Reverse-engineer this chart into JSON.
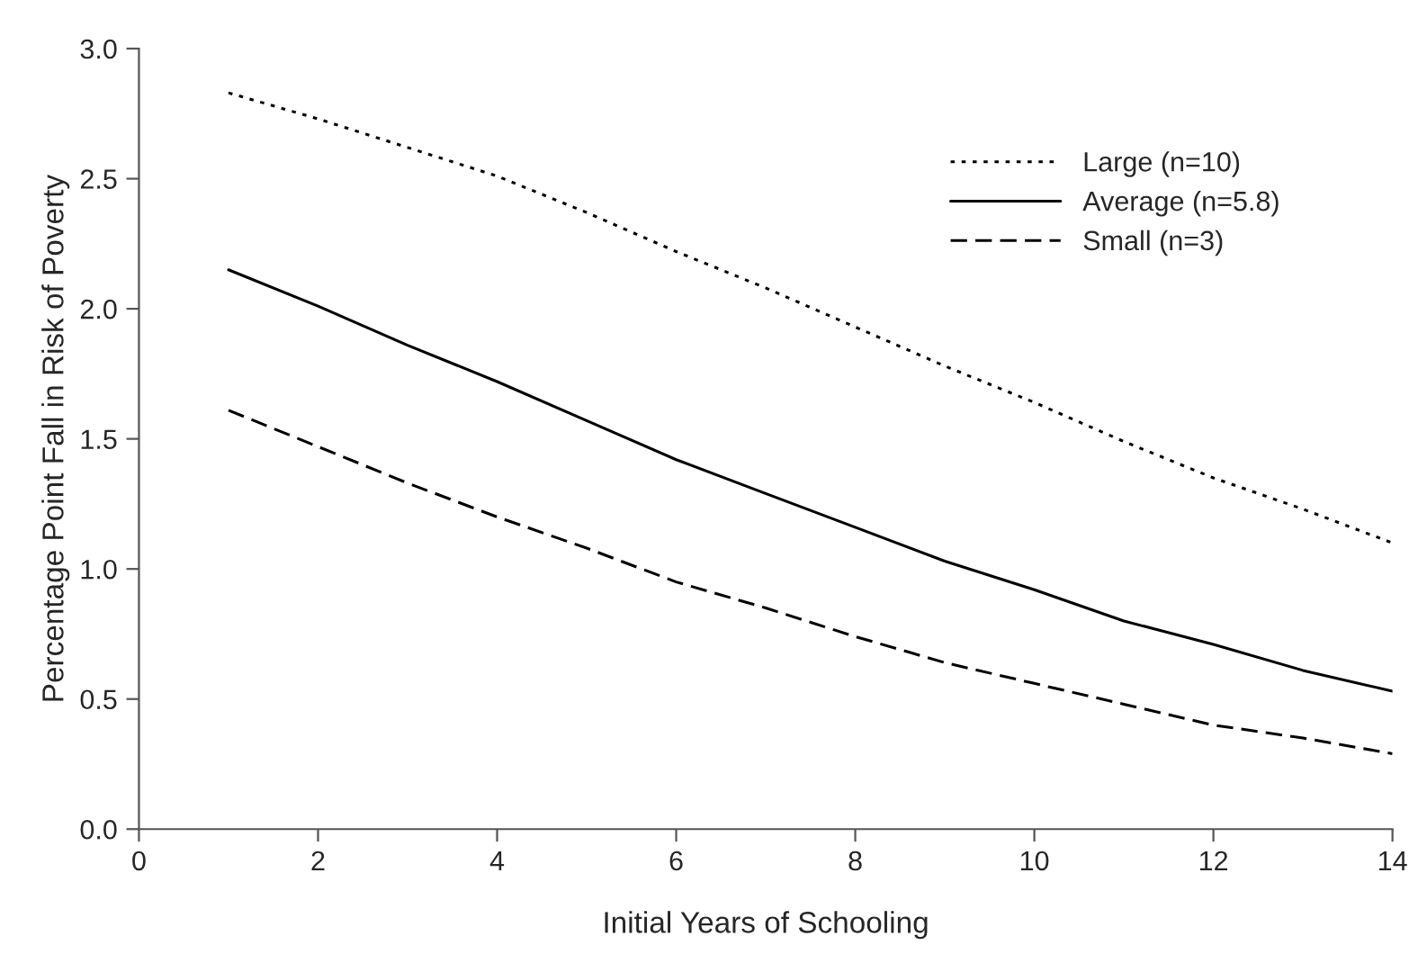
{
  "chart_data": {
    "type": "line",
    "xlabel": "Initial Years of Schooling",
    "ylabel": "Percentage Point Fall in Risk of Poverty",
    "x": [
      1,
      2,
      3,
      4,
      5,
      6,
      7,
      8,
      9,
      10,
      11,
      12,
      13,
      14
    ],
    "series": [
      {
        "name": "Large (n=10)",
        "color": "#000000",
        "line_style": "dotted",
        "values": [
          2.83,
          2.73,
          2.62,
          2.51,
          2.37,
          2.22,
          2.08,
          1.93,
          1.78,
          1.64,
          1.49,
          1.35,
          1.23,
          1.1
        ]
      },
      {
        "name": "Average (n=5.8)",
        "color": "#000000",
        "line_style": "solid",
        "values": [
          2.15,
          2.01,
          1.86,
          1.72,
          1.57,
          1.42,
          1.29,
          1.16,
          1.03,
          0.92,
          0.8,
          0.71,
          0.61,
          0.53
        ]
      },
      {
        "name": "Small (n=3)",
        "color": "#000000",
        "line_style": "dashed",
        "values": [
          1.61,
          1.47,
          1.33,
          1.2,
          1.08,
          0.95,
          0.85,
          0.74,
          0.64,
          0.56,
          0.48,
          0.4,
          0.35,
          0.29
        ]
      }
    ],
    "xlim": [
      0,
      14
    ],
    "ylim": [
      0,
      3.0
    ],
    "xticks": [
      0,
      2,
      4,
      6,
      8,
      10,
      12,
      14
    ],
    "yticks": [
      {
        "value": 0,
        "label": "0.0"
      },
      {
        "value": 0.5,
        "label": "0.5"
      },
      {
        "value": 1.0,
        "label": "1.0"
      },
      {
        "value": 1.5,
        "label": "1.5"
      },
      {
        "value": 2.0,
        "label": "2.0"
      },
      {
        "value": 2.5,
        "label": "2.5"
      },
      {
        "value": 3.0,
        "label": "3.0"
      }
    ],
    "grid": false,
    "legend": "top right",
    "marker": "none"
  }
}
